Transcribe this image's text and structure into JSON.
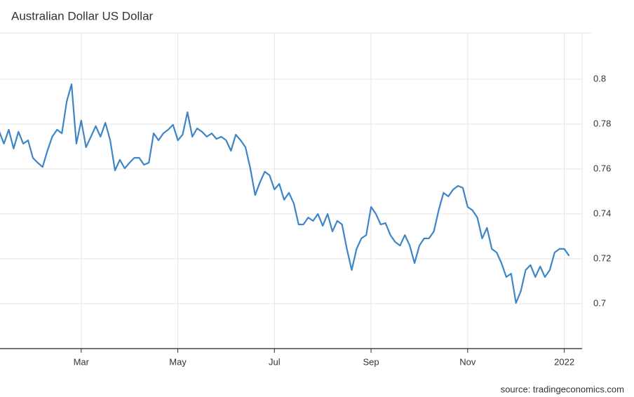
{
  "chart_data": {
    "type": "line",
    "title": "Australian Dollar US Dollar",
    "source": "source: tradingeconomics.com",
    "categories": [
      null,
      null,
      null,
      null,
      null,
      null,
      null,
      null,
      null,
      null,
      null,
      null,
      null,
      null,
      null,
      null,
      null,
      "Mar",
      null,
      null,
      null,
      null,
      null,
      null,
      null,
      null,
      null,
      null,
      null,
      null,
      null,
      null,
      null,
      null,
      null,
      null,
      null,
      "May",
      null,
      null,
      null,
      null,
      null,
      null,
      null,
      null,
      null,
      null,
      null,
      null,
      null,
      null,
      null,
      null,
      null,
      null,
      null,
      "Jul",
      null,
      null,
      null,
      null,
      null,
      null,
      null,
      null,
      null,
      null,
      null,
      null,
      null,
      null,
      null,
      null,
      null,
      null,
      null,
      "Sep",
      null,
      null,
      null,
      null,
      null,
      null,
      null,
      null,
      null,
      null,
      null,
      null,
      null,
      null,
      null,
      null,
      null,
      null,
      null,
      "Nov",
      null,
      null,
      null,
      null,
      null,
      null,
      null,
      null,
      null,
      null,
      null,
      null,
      null,
      null,
      null,
      null,
      null,
      null,
      null,
      "2022",
      null
    ],
    "series": [
      {
        "color": "#3d85c6",
        "values": [
          0.7769,
          0.7713,
          0.7775,
          0.7691,
          0.7766,
          0.7713,
          0.7728,
          0.765,
          0.7628,
          0.7609,
          0.7681,
          0.7744,
          0.7775,
          0.7759,
          0.79,
          0.7978,
          0.7713,
          0.7816,
          0.7697,
          0.7744,
          0.7791,
          0.7744,
          0.7806,
          0.7728,
          0.7594,
          0.7641,
          0.7603,
          0.7628,
          0.765,
          0.765,
          0.7619,
          0.7628,
          0.7759,
          0.7728,
          0.7759,
          0.7775,
          0.7797,
          0.7728,
          0.7753,
          0.7853,
          0.7744,
          0.7781,
          0.7766,
          0.7744,
          0.7759,
          0.7734,
          0.7744,
          0.7728,
          0.7681,
          0.7753,
          0.7728,
          0.7697,
          0.7603,
          0.7484,
          0.7541,
          0.7588,
          0.7572,
          0.7509,
          0.7534,
          0.7463,
          0.7494,
          0.7447,
          0.7353,
          0.7353,
          0.7384,
          0.7369,
          0.74,
          0.7347,
          0.74,
          0.7322,
          0.7369,
          0.7353,
          0.7244,
          0.715,
          0.7244,
          0.7291,
          0.7306,
          0.7431,
          0.74,
          0.7353,
          0.7359,
          0.7306,
          0.7275,
          0.7259,
          0.7306,
          0.7259,
          0.7181,
          0.7259,
          0.7291,
          0.7291,
          0.7322,
          0.7416,
          0.7494,
          0.7478,
          0.7509,
          0.7525,
          0.7516,
          0.7431,
          0.7416,
          0.7384,
          0.7291,
          0.7338,
          0.7244,
          0.7228,
          0.7181,
          0.7119,
          0.7134,
          0.7003,
          0.7056,
          0.715,
          0.7172,
          0.7119,
          0.7166,
          0.7119,
          0.715,
          0.7228,
          0.7244,
          0.7244,
          0.7213
        ]
      }
    ],
    "ylim": [
      0.68,
      0.8206
    ],
    "yticks": [
      0.7,
      0.72,
      0.74,
      0.76,
      0.78,
      0.8
    ],
    "grid": true
  }
}
